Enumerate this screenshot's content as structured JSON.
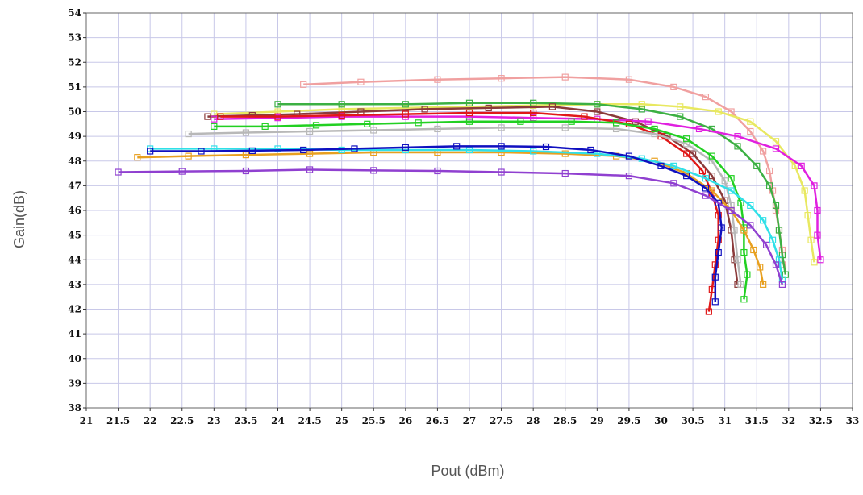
{
  "chart_data": {
    "type": "line",
    "title": "",
    "xlabel": "Pout (dBm)",
    "ylabel": "Gain(dB)",
    "xlim": [
      21,
      33
    ],
    "ylim": [
      38,
      54
    ],
    "x_ticks": [
      21,
      21.5,
      22,
      22.5,
      23,
      23.5,
      24,
      24.5,
      25,
      25.5,
      26,
      26.5,
      27,
      27.5,
      28,
      28.5,
      29,
      29.5,
      30,
      30.5,
      31,
      31.5,
      32,
      32.5,
      33
    ],
    "y_ticks": [
      38,
      39,
      40,
      41,
      42,
      43,
      44,
      45,
      46,
      47,
      48,
      49,
      50,
      51,
      52,
      53,
      54
    ],
    "grid": true,
    "legend": "none",
    "marker": "square",
    "series": [
      {
        "color": "#f0a0a0",
        "points": [
          [
            24.4,
            51.1
          ],
          [
            25.3,
            51.2
          ],
          [
            26.5,
            51.3
          ],
          [
            27.5,
            51.35
          ],
          [
            28.5,
            51.4
          ],
          [
            29.5,
            51.3
          ],
          [
            30.2,
            51.0
          ],
          [
            30.7,
            50.6
          ],
          [
            31.1,
            50.0
          ],
          [
            31.4,
            49.2
          ],
          [
            31.6,
            48.4
          ],
          [
            31.7,
            47.6
          ],
          [
            31.75,
            46.8
          ],
          [
            31.8,
            46.0
          ],
          [
            31.85,
            45.2
          ],
          [
            31.9,
            44.4
          ],
          [
            31.9,
            43.8
          ]
        ]
      },
      {
        "color": "#e8e860",
        "points": [
          [
            23.0,
            49.9
          ],
          [
            24.0,
            50.0
          ],
          [
            25.0,
            50.1
          ],
          [
            26.0,
            50.15
          ],
          [
            27.0,
            50.2
          ],
          [
            28.0,
            50.25
          ],
          [
            29.0,
            50.3
          ],
          [
            29.7,
            50.3
          ],
          [
            30.3,
            50.2
          ],
          [
            30.9,
            50.0
          ],
          [
            31.4,
            49.6
          ],
          [
            31.8,
            48.8
          ],
          [
            32.1,
            47.8
          ],
          [
            32.25,
            46.8
          ],
          [
            32.3,
            45.8
          ],
          [
            32.35,
            44.8
          ],
          [
            32.4,
            43.9
          ]
        ]
      },
      {
        "color": "#3cb043",
        "points": [
          [
            24.0,
            50.3
          ],
          [
            25.0,
            50.3
          ],
          [
            26.0,
            50.3
          ],
          [
            27.0,
            50.35
          ],
          [
            28.0,
            50.35
          ],
          [
            29.0,
            50.3
          ],
          [
            29.7,
            50.1
          ],
          [
            30.3,
            49.8
          ],
          [
            30.8,
            49.3
          ],
          [
            31.2,
            48.6
          ],
          [
            31.5,
            47.8
          ],
          [
            31.7,
            47.0
          ],
          [
            31.8,
            46.2
          ],
          [
            31.85,
            45.2
          ],
          [
            31.9,
            44.2
          ],
          [
            31.95,
            43.4
          ]
        ]
      },
      {
        "color": "#8b3a3a",
        "points": [
          [
            22.9,
            49.8
          ],
          [
            23.6,
            49.85
          ],
          [
            24.3,
            49.9
          ],
          [
            25.3,
            50.0
          ],
          [
            26.3,
            50.1
          ],
          [
            27.3,
            50.15
          ],
          [
            28.3,
            50.2
          ],
          [
            29.0,
            50.0
          ],
          [
            29.6,
            49.6
          ],
          [
            30.1,
            49.0
          ],
          [
            30.5,
            48.3
          ],
          [
            30.8,
            47.4
          ],
          [
            31.0,
            46.4
          ],
          [
            31.1,
            45.2
          ],
          [
            31.15,
            44.0
          ],
          [
            31.2,
            43.0
          ]
        ]
      },
      {
        "color": "#e020e0",
        "points": [
          [
            23.0,
            49.7
          ],
          [
            24.0,
            49.75
          ],
          [
            25.0,
            49.8
          ],
          [
            26.0,
            49.8
          ],
          [
            27.0,
            49.8
          ],
          [
            28.0,
            49.75
          ],
          [
            29.0,
            49.7
          ],
          [
            29.8,
            49.6
          ],
          [
            30.6,
            49.3
          ],
          [
            31.2,
            49.0
          ],
          [
            31.8,
            48.5
          ],
          [
            32.2,
            47.8
          ],
          [
            32.4,
            47.0
          ],
          [
            32.45,
            46.0
          ],
          [
            32.45,
            45.0
          ],
          [
            32.5,
            44.0
          ]
        ]
      },
      {
        "color": "#e01818",
        "points": [
          [
            23.1,
            49.8
          ],
          [
            24.0,
            49.8
          ],
          [
            25.0,
            49.85
          ],
          [
            26.0,
            49.9
          ],
          [
            27.0,
            49.95
          ],
          [
            28.0,
            49.95
          ],
          [
            28.8,
            49.8
          ],
          [
            29.5,
            49.5
          ],
          [
            30.0,
            49.0
          ],
          [
            30.4,
            48.3
          ],
          [
            30.65,
            47.6
          ],
          [
            30.8,
            46.7
          ],
          [
            30.9,
            45.8
          ],
          [
            30.9,
            44.8
          ],
          [
            30.85,
            43.8
          ],
          [
            30.8,
            42.8
          ],
          [
            30.75,
            41.9
          ]
        ]
      },
      {
        "color": "#b8b8b8",
        "points": [
          [
            22.6,
            49.1
          ],
          [
            23.5,
            49.15
          ],
          [
            24.5,
            49.2
          ],
          [
            25.5,
            49.25
          ],
          [
            26.5,
            49.3
          ],
          [
            27.5,
            49.35
          ],
          [
            28.5,
            49.35
          ],
          [
            29.3,
            49.3
          ],
          [
            29.9,
            49.1
          ],
          [
            30.4,
            48.7
          ],
          [
            30.8,
            48.0
          ],
          [
            31.0,
            47.2
          ],
          [
            31.1,
            46.2
          ],
          [
            31.15,
            45.2
          ],
          [
            31.2,
            44.0
          ],
          [
            31.25,
            43.0
          ]
        ]
      },
      {
        "color": "#22d022",
        "points": [
          [
            23.0,
            49.4
          ],
          [
            23.8,
            49.4
          ],
          [
            24.6,
            49.45
          ],
          [
            25.4,
            49.5
          ],
          [
            26.2,
            49.55
          ],
          [
            27.0,
            49.6
          ],
          [
            27.8,
            49.6
          ],
          [
            28.6,
            49.6
          ],
          [
            29.3,
            49.55
          ],
          [
            29.9,
            49.3
          ],
          [
            30.4,
            48.9
          ],
          [
            30.8,
            48.2
          ],
          [
            31.1,
            47.3
          ],
          [
            31.25,
            46.3
          ],
          [
            31.3,
            45.3
          ],
          [
            31.3,
            44.3
          ],
          [
            31.35,
            43.4
          ],
          [
            31.3,
            42.4
          ]
        ]
      },
      {
        "color": "#e8a020",
        "points": [
          [
            21.8,
            48.15
          ],
          [
            22.6,
            48.2
          ],
          [
            23.5,
            48.25
          ],
          [
            24.5,
            48.3
          ],
          [
            25.5,
            48.35
          ],
          [
            26.5,
            48.35
          ],
          [
            27.5,
            48.35
          ],
          [
            28.5,
            48.3
          ],
          [
            29.3,
            48.2
          ],
          [
            29.9,
            48.0
          ],
          [
            30.4,
            47.5
          ],
          [
            30.8,
            46.8
          ],
          [
            31.1,
            46.0
          ],
          [
            31.3,
            45.2
          ],
          [
            31.45,
            44.4
          ],
          [
            31.55,
            43.7
          ],
          [
            31.6,
            43.0
          ]
        ]
      },
      {
        "color": "#30e0e8",
        "points": [
          [
            22.0,
            48.5
          ],
          [
            23.0,
            48.5
          ],
          [
            24.0,
            48.5
          ],
          [
            25.0,
            48.45
          ],
          [
            26.0,
            48.45
          ],
          [
            27.0,
            48.45
          ],
          [
            28.0,
            48.4
          ],
          [
            29.0,
            48.3
          ],
          [
            29.7,
            48.1
          ],
          [
            30.2,
            47.8
          ],
          [
            30.7,
            47.3
          ],
          [
            31.1,
            46.8
          ],
          [
            31.4,
            46.2
          ],
          [
            31.6,
            45.6
          ],
          [
            31.75,
            44.8
          ],
          [
            31.85,
            44.0
          ],
          [
            31.9,
            43.2
          ]
        ]
      },
      {
        "color": "#1010c0",
        "points": [
          [
            22.0,
            48.4
          ],
          [
            22.8,
            48.4
          ],
          [
            23.6,
            48.42
          ],
          [
            24.4,
            48.45
          ],
          [
            25.2,
            48.5
          ],
          [
            26.0,
            48.55
          ],
          [
            26.8,
            48.6
          ],
          [
            27.5,
            48.6
          ],
          [
            28.2,
            48.58
          ],
          [
            28.9,
            48.45
          ],
          [
            29.5,
            48.2
          ],
          [
            30.0,
            47.8
          ],
          [
            30.4,
            47.4
          ],
          [
            30.7,
            46.9
          ],
          [
            30.9,
            46.3
          ],
          [
            30.95,
            45.3
          ],
          [
            30.9,
            44.3
          ],
          [
            30.85,
            43.3
          ],
          [
            30.85,
            42.3
          ]
        ]
      },
      {
        "color": "#9040d0",
        "points": [
          [
            21.5,
            47.55
          ],
          [
            22.5,
            47.58
          ],
          [
            23.5,
            47.6
          ],
          [
            24.5,
            47.65
          ],
          [
            25.5,
            47.62
          ],
          [
            26.5,
            47.6
          ],
          [
            27.5,
            47.55
          ],
          [
            28.5,
            47.5
          ],
          [
            29.5,
            47.4
          ],
          [
            30.2,
            47.1
          ],
          [
            30.7,
            46.6
          ],
          [
            31.1,
            46.0
          ],
          [
            31.4,
            45.4
          ],
          [
            31.65,
            44.6
          ],
          [
            31.8,
            43.8
          ],
          [
            31.9,
            43.0
          ]
        ]
      }
    ]
  }
}
